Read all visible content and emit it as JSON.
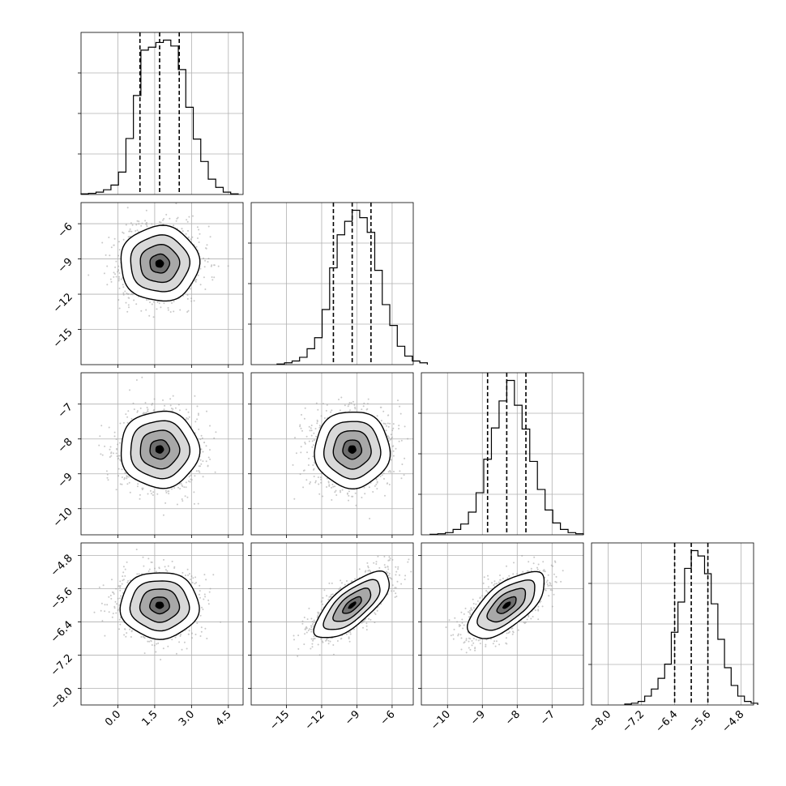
{
  "chart_data": {
    "type": "corner",
    "title": "",
    "grid": true,
    "parameters": [
      {
        "ticks": [
          0.0,
          1.5,
          3.0,
          4.5
        ],
        "tick_labels": [
          "0.0",
          "1.5",
          "3.0",
          "4.5"
        ],
        "range": [
          -1.5,
          5.1
        ],
        "quantiles": [
          0.9,
          1.7,
          2.5
        ],
        "mean": 1.7,
        "sd": 0.8
      },
      {
        "ticks": [
          -15,
          -12,
          -9,
          -6
        ],
        "tick_labels": [
          "−15",
          "−12",
          "−9",
          "−6"
        ],
        "range": [
          -18.0,
          -4.2
        ],
        "quantiles": [
          -11.0,
          -9.4,
          -7.8
        ],
        "mean": -9.4,
        "sd": 1.6
      },
      {
        "ticks": [
          -10,
          -9,
          -8,
          -7
        ],
        "tick_labels": [
          "−10",
          "−9",
          "−8",
          "−7"
        ],
        "range": [
          -10.75,
          -6.1
        ],
        "quantiles": [
          -8.85,
          -8.3,
          -7.75
        ],
        "mean": -8.3,
        "sd": 0.55
      },
      {
        "ticks": [
          -8.0,
          -7.2,
          -6.4,
          -5.6,
          -4.8
        ],
        "tick_labels": [
          "−8.0",
          "−7.2",
          "−6.4",
          "−5.6",
          "−4.8"
        ],
        "range": [
          -8.4,
          -4.5
        ],
        "quantiles": [
          -6.4,
          -6.0,
          -5.6
        ],
        "mean": -6.0,
        "sd": 0.4
      }
    ],
    "histograms": [
      [
        1,
        2,
        4,
        8,
        16,
        38,
        95,
        168,
        245,
        250,
        258,
        262,
        252,
        212,
        148,
        94,
        56,
        26,
        12,
        4,
        1
      ],
      [
        1,
        3,
        6,
        12,
        26,
        44,
        90,
        158,
        212,
        234,
        252,
        240,
        216,
        154,
        98,
        64,
        30,
        14,
        6,
        3
      ],
      [
        1,
        2,
        4,
        10,
        20,
        42,
        78,
        140,
        198,
        248,
        286,
        240,
        196,
        136,
        84,
        46,
        22,
        10,
        4,
        2
      ],
      [
        1,
        2,
        4,
        10,
        18,
        30,
        46,
        82,
        116,
        154,
        174,
        168,
        148,
        114,
        74,
        42,
        22,
        10,
        4,
        2
      ]
    ],
    "correlations": {
      "1-0": 0.0,
      "2-0": 0.0,
      "2-1": 0.0,
      "3-0": 0.0,
      "3-1": 0.72,
      "3-2": 0.66
    },
    "contour_levels_sigma": [
      0.5,
      1.0,
      1.5,
      2.0
    ]
  }
}
